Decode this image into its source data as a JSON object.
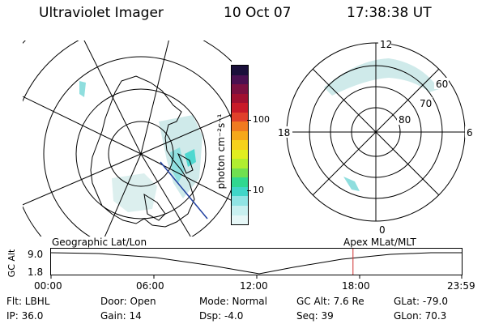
{
  "header": {
    "instrument": "Ultraviolet Imager",
    "date": "10 Oct 07",
    "time": "17:38:38 UT"
  },
  "left_map": {
    "caption": "Geographic Lat/Lon"
  },
  "colorbar": {
    "label": "photon cm⁻²s⁻¹",
    "tick_high": "100",
    "tick_low": "10",
    "colors": [
      "#1a0f3a",
      "#4a1050",
      "#7a1040",
      "#a01030",
      "#c81a28",
      "#e0402a",
      "#f07a20",
      "#f6a81a",
      "#f6d21c",
      "#e0ee20",
      "#b0ee30",
      "#70e050",
      "#30d890",
      "#40d6c8",
      "#90e4e4",
      "#c8f0f0",
      "#e6f7f7"
    ]
  },
  "right_map": {
    "caption": "Apex  MLat/MLT",
    "mlt_top": "12",
    "mlt_left": "18",
    "mlt_right": "6",
    "mlt_bottom": "0",
    "lat_60": "60",
    "lat_70": "70",
    "lat_80": "80"
  },
  "altitude_strip": {
    "axis_label": "GC Alt",
    "y_high": "9.0",
    "y_low": "1.8",
    "x_ticks": [
      "00:00",
      "06:00",
      "12:00",
      "18:00",
      "23:59"
    ],
    "marker_time": "17:38",
    "marker_color": "#d03030"
  },
  "footer": {
    "flt": "Flt: LBHL",
    "ip": "IP: 36.0",
    "door": "Door: Open",
    "gain": "Gain: 14",
    "mode": "Mode: Normal",
    "dsp": "Dsp:   -4.0",
    "gc_alt": "GC Alt: 7.6 Re",
    "seq": "Seq: 39",
    "glat": "GLat: -79.0",
    "glon": "GLon:  70.3"
  }
}
